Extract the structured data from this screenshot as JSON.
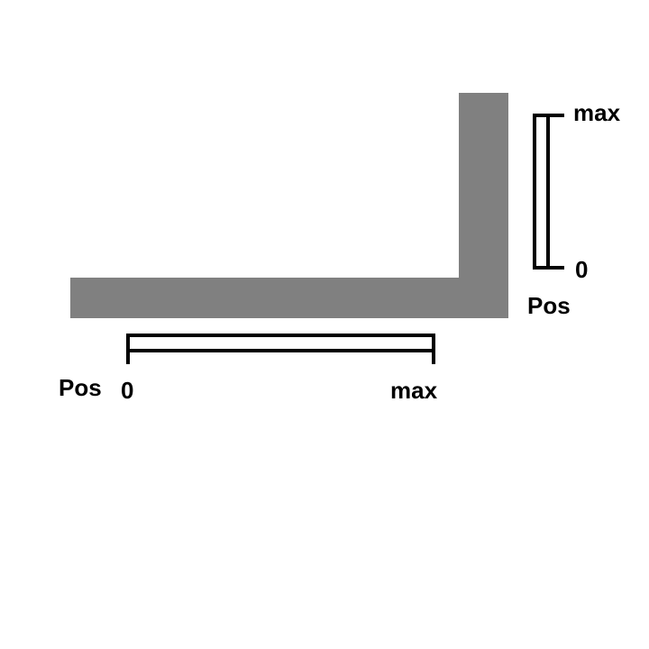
{
  "colors": {
    "bar_fill": "#808080",
    "line": "#000000",
    "background": "#ffffff"
  },
  "horizontal_scale": {
    "pos_label": "Pos",
    "min_label": "0",
    "max_label": "max"
  },
  "vertical_scale": {
    "pos_label": "Pos",
    "min_label": "0",
    "max_label": "max"
  }
}
